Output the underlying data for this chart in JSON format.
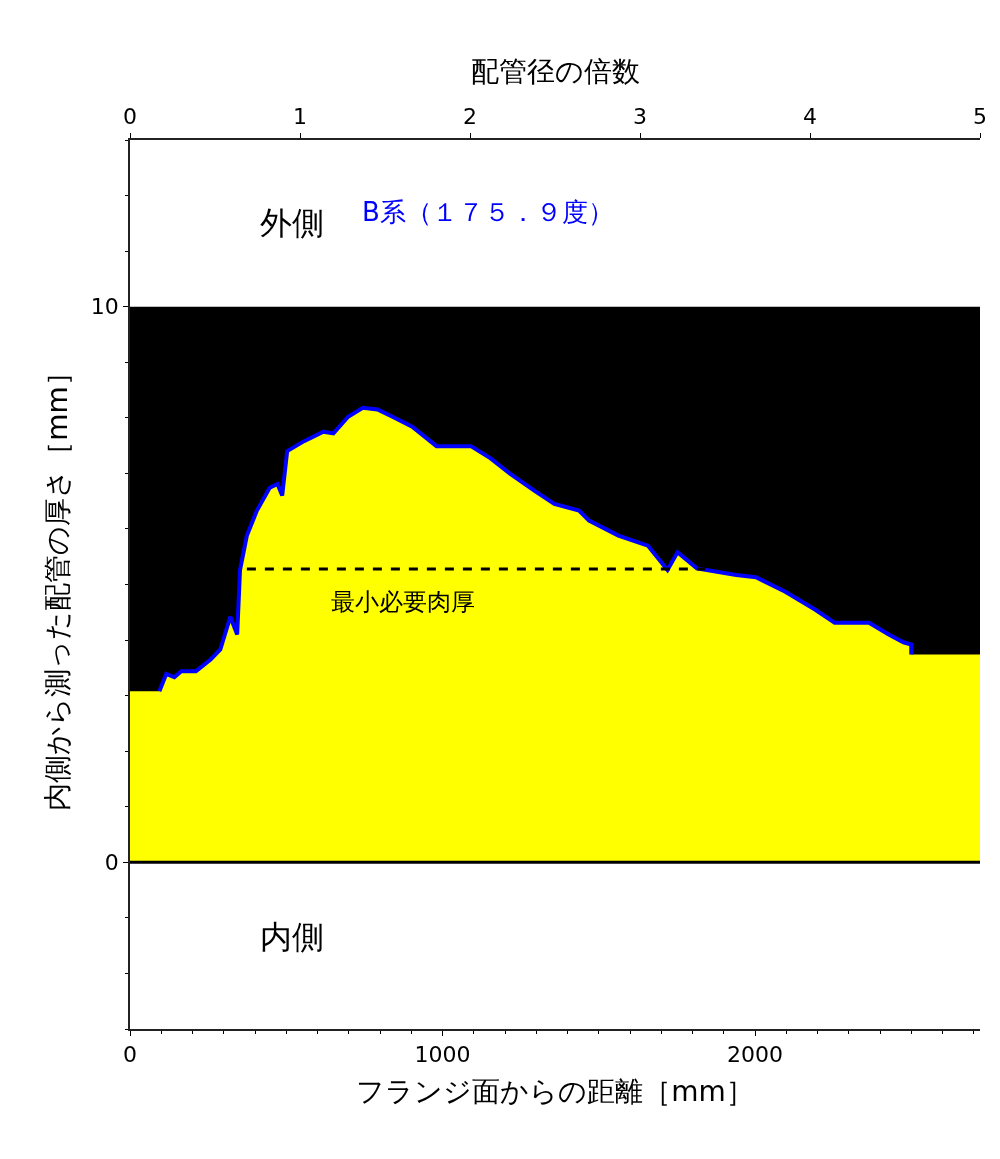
{
  "chart_data": {
    "type": "area",
    "xlabel": "フランジ面からの距離［mm］",
    "x2label": "配管径の倍数",
    "ylabel": "内側から測った配管の厚さ［mm］",
    "xlim": [
      0,
      2720
    ],
    "xticks": [
      0,
      1000,
      2000
    ],
    "x2lim": [
      0,
      5
    ],
    "x2ticks": [
      0,
      1,
      2,
      3,
      4,
      5
    ],
    "ylim": [
      -3,
      13
    ],
    "yticks": [
      0,
      10
    ],
    "grid": false,
    "legend": false,
    "series": [
      {
        "color": "#ffff00",
        "x": [
          0,
          94,
          116,
          142,
          164,
          211,
          258,
          289,
          321,
          343,
          352,
          374,
          406,
          447,
          472,
          487,
          503,
          557,
          619,
          651,
          698,
          745,
          792,
          840,
          903,
          981,
          1091,
          1154,
          1217,
          1296,
          1358,
          1437,
          1469,
          1563,
          1657,
          1720,
          1752,
          1814,
          1940,
          2003,
          2097,
          2192,
          2255,
          2365,
          2428,
          2475,
          2500,
          2500,
          2720
        ],
        "values": [
          3.08,
          3.08,
          3.39,
          3.33,
          3.44,
          3.44,
          3.65,
          3.83,
          4.42,
          4.1,
          5.26,
          5.88,
          6.33,
          6.74,
          6.81,
          6.6,
          7.4,
          7.58,
          7.75,
          7.72,
          8.02,
          8.18,
          8.15,
          8.02,
          7.84,
          7.49,
          7.49,
          7.27,
          6.99,
          6.68,
          6.45,
          6.33,
          6.15,
          5.88,
          5.7,
          5.26,
          5.58,
          5.29,
          5.17,
          5.13,
          4.87,
          4.55,
          4.31,
          4.31,
          4.1,
          3.96,
          3.92,
          3.74,
          3.74
        ]
      },
      {
        "type": "line",
        "name": "B系（１７５．９度）",
        "color": "#0000ff",
        "x": [
          94,
          116,
          142,
          164,
          211,
          258,
          289,
          321,
          343,
          352,
          374,
          406,
          447,
          472,
          487,
          503,
          557,
          619,
          651,
          698,
          745,
          792,
          840,
          903,
          981,
          1091,
          1154,
          1217,
          1296,
          1358,
          1437,
          1469,
          1563,
          1657,
          1720,
          1752,
          1814,
          1940,
          2003,
          2097,
          2192,
          2255,
          2365,
          2428,
          2475,
          2500,
          2500
        ],
        "values": [
          3.08,
          3.39,
          3.33,
          3.44,
          3.44,
          3.65,
          3.83,
          4.42,
          4.1,
          5.26,
          5.88,
          6.33,
          6.74,
          6.81,
          6.6,
          7.4,
          7.58,
          7.75,
          7.72,
          8.02,
          8.18,
          8.15,
          8.02,
          7.84,
          7.49,
          7.49,
          7.27,
          6.99,
          6.68,
          6.45,
          6.33,
          6.15,
          5.88,
          5.7,
          5.26,
          5.58,
          5.29,
          5.17,
          5.13,
          4.87,
          4.55,
          4.31,
          4.31,
          4.1,
          3.96,
          3.92,
          3.74
        ]
      },
      {
        "type": "line",
        "name": "最小必要肉厚",
        "color": "#000000",
        "line_style": "dashed",
        "x": [
          374,
          1840
        ],
        "values": [
          5.28,
          5.28
        ]
      }
    ],
    "bands": [
      {
        "axis": "y",
        "from": 0,
        "to": 10,
        "color": "#000000"
      }
    ],
    "ref_lines": [
      {
        "axis": "y",
        "value": 0,
        "color": "#000000"
      }
    ],
    "annotations": [
      "外側",
      "内側"
    ]
  }
}
